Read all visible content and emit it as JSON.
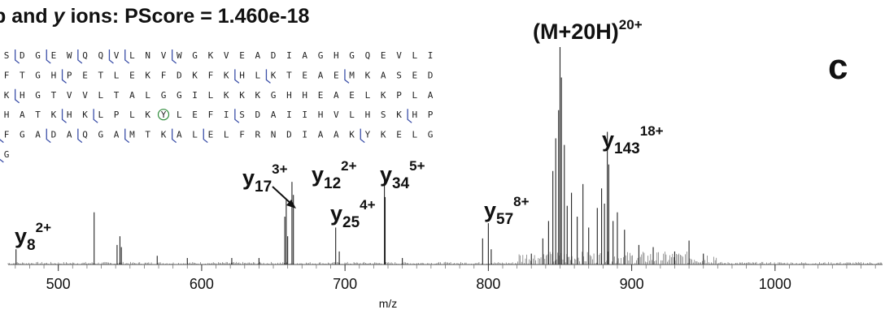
{
  "header": {
    "title_prefix": "b and ",
    "title_italic": "y",
    "title_rest": " ions: PScore = 1.460e-18",
    "panel_letter": "c"
  },
  "sequence": {
    "rows": [
      "SDGEWQQVLNVWGKVEADIAGHGQEVLI",
      "FTGHPETLEKFDKFKHLKTEAEMKASED",
      "KHGTVVLTALGGILKKKGHHEAELKPLA",
      "HATKHKLPLKYLEFISDAIIHVLHSKHP",
      "FGADAQGAMTKALELFRNDIAAKYKELG",
      "G"
    ],
    "highlight": {
      "row": 3,
      "col": 10
    },
    "colors": {
      "text": "#222222",
      "cleavage": "#3b4fa8",
      "highlight": "#2e8b3a"
    }
  },
  "chart_data": {
    "type": "bar",
    "xlabel": "m/z",
    "ylabel": "",
    "xlim": [
      465,
      1075
    ],
    "ylim": [
      0,
      1.0
    ],
    "xticks": [
      500,
      600,
      700,
      800,
      900,
      1000
    ],
    "grid": false,
    "series": [
      {
        "values": [
          [
            470.5,
            0.07
          ],
          [
            525,
            0.24
          ],
          [
            541,
            0.09
          ],
          [
            543,
            0.13
          ],
          [
            544,
            0.08
          ],
          [
            569,
            0.04
          ],
          [
            590,
            0.03
          ],
          [
            621,
            0.03
          ],
          [
            640,
            0.03
          ],
          [
            658,
            0.22
          ],
          [
            659,
            0.3
          ],
          [
            660,
            0.13
          ],
          [
            663,
            0.38
          ],
          [
            664,
            0.32
          ],
          [
            693.5,
            0.17
          ],
          [
            696,
            0.06
          ],
          [
            727.5,
            0.4
          ],
          [
            728,
            0.31
          ],
          [
            740,
            0.03
          ],
          [
            796,
            0.12
          ],
          [
            800,
            0.19
          ],
          [
            802,
            0.07
          ],
          [
            830,
            0.05
          ],
          [
            838,
            0.12
          ],
          [
            842,
            0.2
          ],
          [
            845,
            0.43
          ],
          [
            847,
            0.58
          ],
          [
            849,
            0.71
          ],
          [
            850,
            1.0
          ],
          [
            851,
            0.86
          ],
          [
            853,
            0.55
          ],
          [
            855,
            0.27
          ],
          [
            858,
            0.33
          ],
          [
            862,
            0.22
          ],
          [
            866,
            0.37
          ],
          [
            870,
            0.17
          ],
          [
            876,
            0.26
          ],
          [
            879,
            0.35
          ],
          [
            881,
            0.28
          ],
          [
            883,
            0.61
          ],
          [
            884,
            0.46
          ],
          [
            887,
            0.2
          ],
          [
            890,
            0.24
          ],
          [
            895,
            0.16
          ],
          [
            905,
            0.09
          ],
          [
            915,
            0.08
          ],
          [
            930,
            0.06
          ],
          [
            940,
            0.11
          ],
          [
            950,
            0.05
          ]
        ]
      }
    ],
    "annotations": [
      {
        "ion": "y",
        "sub": "8",
        "sup": "2+",
        "x": 470.5
      },
      {
        "ion": "y",
        "sub": "17",
        "sup": "3+",
        "x": 658
      },
      {
        "ion": "y",
        "sub": "12",
        "sup": "2+",
        "x": 663
      },
      {
        "ion": "y",
        "sub": "25",
        "sup": "4+",
        "x": 693.5
      },
      {
        "ion": "y",
        "sub": "34",
        "sup": "5+",
        "x": 727.5
      },
      {
        "ion": "y",
        "sub": "57",
        "sup": "8+",
        "x": 800
      },
      {
        "ion": "(M+20H)",
        "sub": "",
        "sup": "20+",
        "x": 850
      },
      {
        "ion": "y",
        "sub": "143",
        "sup": "18+",
        "x": 883
      }
    ]
  }
}
